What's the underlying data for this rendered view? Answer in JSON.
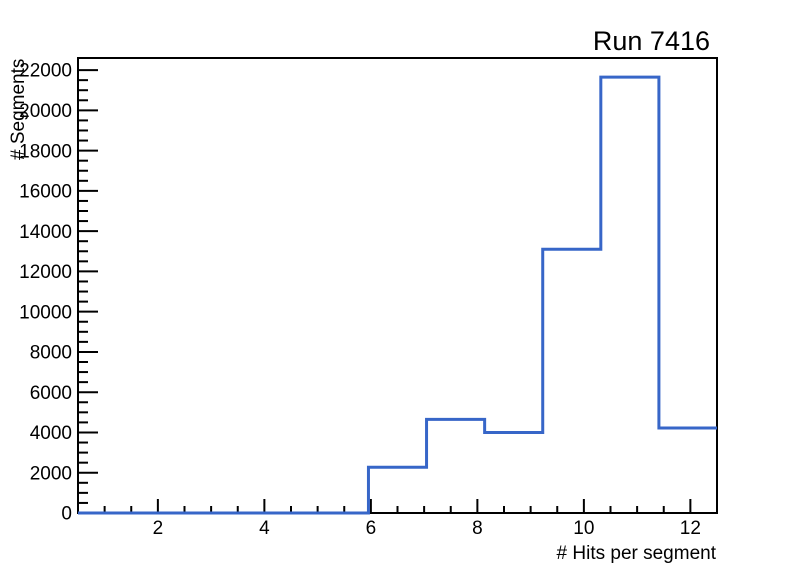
{
  "chart_data": {
    "type": "histogram-step",
    "title": "Run 7416",
    "xlabel": "# Hits per segment",
    "ylabel": "# Segments",
    "xlim": [
      0.5,
      12.5
    ],
    "ylim": [
      0,
      22600
    ],
    "nbins": 11,
    "bin_edges": [
      0.5,
      1.59,
      2.68,
      3.77,
      4.86,
      5.95,
      7.05,
      8.14,
      9.23,
      10.32,
      11.41,
      12.5
    ],
    "bin_values": [
      0,
      0,
      0,
      0,
      0,
      2270,
      4650,
      4000,
      13100,
      21650,
      4220
    ],
    "x_tick_values": [
      2,
      4,
      6,
      8,
      10,
      12
    ],
    "x_tick_labels": [
      "2",
      "4",
      "6",
      "8",
      "10",
      "12"
    ],
    "x_minor_step": 0.5,
    "y_tick_values": [
      0,
      2000,
      4000,
      6000,
      8000,
      10000,
      12000,
      14000,
      16000,
      18000,
      20000,
      22000
    ],
    "y_tick_labels": [
      "0",
      "2000",
      "4000",
      "6000",
      "8000",
      "10000",
      "12000",
      "14000",
      "16000",
      "18000",
      "20000",
      "22000"
    ],
    "y_minor_step": 500,
    "grid": false,
    "legend": false,
    "line_color": "#3766c8",
    "axis_color": "#000000",
    "background_color": "#ffffff"
  }
}
